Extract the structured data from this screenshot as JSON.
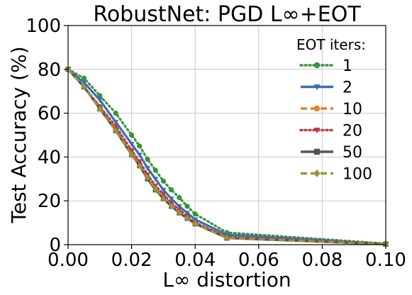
{
  "chart_data": {
    "type": "line",
    "title": "RobustNet: PGD L∞+EOT",
    "xlabel": "L∞ distortion",
    "ylabel": "Test Accuracy (%)",
    "xlim": [
      0,
      0.1
    ],
    "ylim": [
      0,
      100
    ],
    "xticks": [
      0,
      0.02,
      0.04,
      0.06,
      0.08,
      0.1
    ],
    "xtick_labels": [
      "0.00",
      "0.02",
      "0.04",
      "0.06",
      "0.08",
      "0.10"
    ],
    "yticks": [
      0,
      20,
      40,
      60,
      80,
      100
    ],
    "ytick_labels": [
      "0",
      "20",
      "40",
      "60",
      "80",
      "100"
    ],
    "grid": true,
    "legend": {
      "title": "EOT iters:",
      "position": "top-right"
    },
    "x": [
      0.0,
      0.005,
      0.01,
      0.015,
      0.02,
      0.0225,
      0.025,
      0.0275,
      0.03,
      0.0325,
      0.035,
      0.0375,
      0.04,
      0.05,
      0.1
    ],
    "series": [
      {
        "name": "1",
        "color": "#3a923a",
        "style": "dotted",
        "marker": "circle",
        "values": [
          80,
          76,
          68,
          60,
          50,
          45,
          39,
          34,
          29,
          25,
          21.5,
          17.5,
          14,
          5.5,
          0.5
        ]
      },
      {
        "name": "2",
        "color": "#3a6db5",
        "style": "solid",
        "marker": "triangle-down",
        "values": [
          80,
          74,
          66,
          56,
          46,
          41,
          35,
          30,
          25,
          21,
          17.5,
          14.5,
          11.5,
          4.5,
          0.3
        ]
      },
      {
        "name": "10",
        "color": "#e1812c",
        "style": "dashed",
        "marker": "circle",
        "values": [
          80,
          72,
          63,
          53,
          43,
          37,
          31,
          26,
          22,
          18,
          15,
          12,
          10,
          3.5,
          0.3
        ]
      },
      {
        "name": "20",
        "color": "#c03d3e",
        "style": "dotted",
        "marker": "triangle-down",
        "values": [
          80,
          72,
          63,
          54,
          43,
          38,
          32,
          27,
          23,
          19,
          16,
          13,
          10,
          3.5,
          0.3
        ]
      },
      {
        "name": "50",
        "color": "#555555",
        "style": "solid",
        "marker": "square",
        "values": [
          80,
          72,
          62,
          52,
          41,
          36,
          30,
          25,
          21,
          17.5,
          14.5,
          12,
          9.5,
          3,
          0.2
        ]
      },
      {
        "name": "100",
        "color": "#9a9240",
        "style": "dashed",
        "marker": "diamond",
        "values": [
          80,
          72,
          62,
          52,
          41,
          36,
          30.5,
          25.5,
          21,
          17.5,
          14.5,
          12,
          9.5,
          3,
          0.2
        ]
      }
    ]
  }
}
